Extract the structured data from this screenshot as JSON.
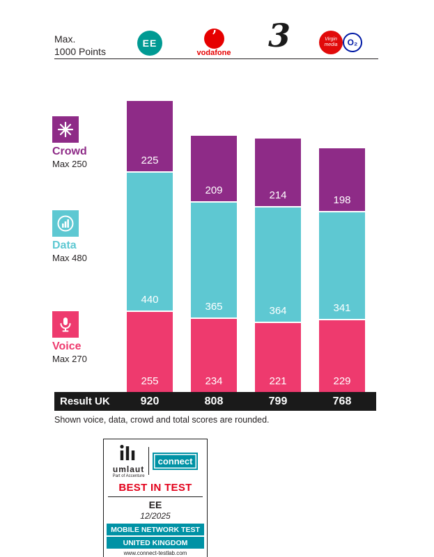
{
  "header": {
    "max_line1": "Max.",
    "max_line2": "1000 Points"
  },
  "operators": [
    {
      "name": "EE",
      "logo_text": "EE"
    },
    {
      "name": "Vodafone",
      "logo_mark": "’",
      "logo_text": "vodafone"
    },
    {
      "name": "Three",
      "logo_text": "3"
    },
    {
      "name": "Virgin Media O2",
      "logo_text_virgin": "Virgin media",
      "logo_text_o2": "O₂"
    }
  ],
  "legend": [
    {
      "label": "Crowd",
      "max_label": "Max 250",
      "color": "#8e2b87",
      "icon": "crowd-icon"
    },
    {
      "label": "Data",
      "max_label": "Max 480",
      "color": "#5ec8d2",
      "icon": "data-icon"
    },
    {
      "label": "Voice",
      "max_label": "Max 270",
      "color": "#ee3a6e",
      "icon": "voice-icon"
    }
  ],
  "chart_data": {
    "type": "bar",
    "stacked": true,
    "categories": [
      "EE",
      "Vodafone",
      "Three",
      "Virgin Media O2"
    ],
    "series": [
      {
        "name": "Voice",
        "color": "#ee3a6e",
        "values": [
          255,
          234,
          221,
          229
        ]
      },
      {
        "name": "Data",
        "color": "#5ec8d2",
        "values": [
          440,
          365,
          364,
          341
        ]
      },
      {
        "name": "Crowd",
        "color": "#8e2b87",
        "values": [
          225,
          209,
          214,
          198
        ]
      }
    ],
    "totals": [
      920,
      808,
      799,
      768
    ],
    "ylim": [
      0,
      1000
    ],
    "max_total_label": "Max. 1000 Points",
    "result_row_label": "Result UK",
    "legend_position": "left",
    "grid": false
  },
  "footnote": "Shown voice, data, crowd and total scores are rounded.",
  "seal": {
    "umlaut_label": "umlaut",
    "umlaut_sub": "Part of Accenture",
    "connect_label": "connect",
    "award": "BEST IN TEST",
    "winner": "EE",
    "issue": "12/2025",
    "band_line1": "MOBILE NETWORK TEST",
    "band_line2": "UNITED KINGDOM",
    "url": "www.connect-testlab.com"
  },
  "colors": {
    "crowd_purple": "#8e2b87",
    "data_teal": "#5ec8d2",
    "voice_pink": "#ee3a6e",
    "result_black": "#1a1a1a",
    "ee_brand": "#009a93",
    "vodafone_red": "#e60000",
    "virgin_red": "#e10a0a",
    "o2_blue": "#0019a5",
    "connect_teal": "#0092a5",
    "award_red": "#e2001a"
  }
}
